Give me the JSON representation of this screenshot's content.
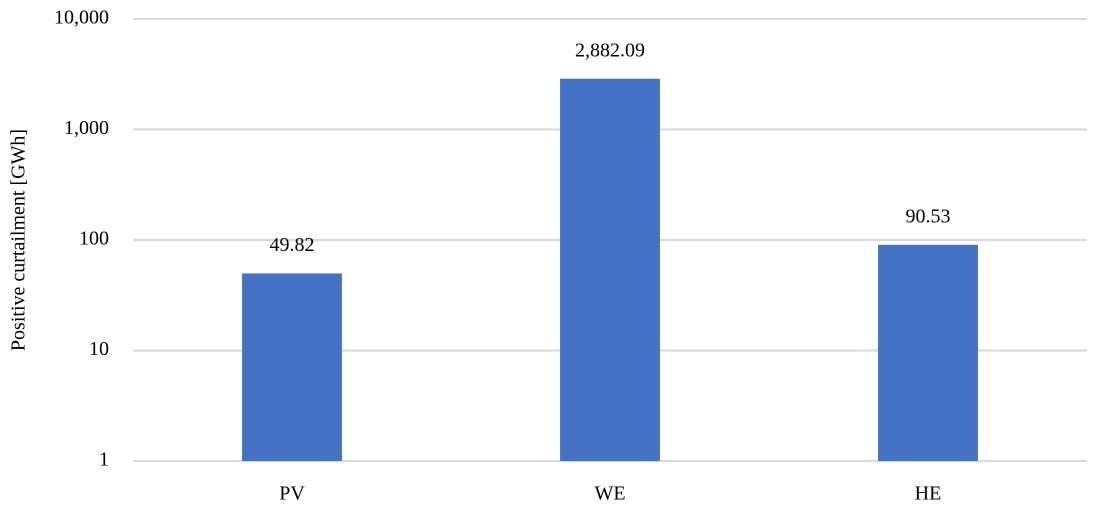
{
  "chart_data": {
    "type": "bar",
    "y_label": "Positive curtailment [GWh]",
    "categories": [
      "PV",
      "WE",
      "HE"
    ],
    "values": [
      49.82,
      2882.09,
      90.53
    ],
    "value_labels": [
      "49.82",
      "2,882.09",
      "90.53"
    ],
    "color": "#4472c4",
    "log_scale": true,
    "ylim": [
      1,
      10000
    ],
    "yticks": [
      1,
      10,
      100,
      {
        "value": 1000,
        "label": "1,000"
      },
      {
        "value": 10000,
        "label": "10,000"
      }
    ],
    "grid": true
  }
}
